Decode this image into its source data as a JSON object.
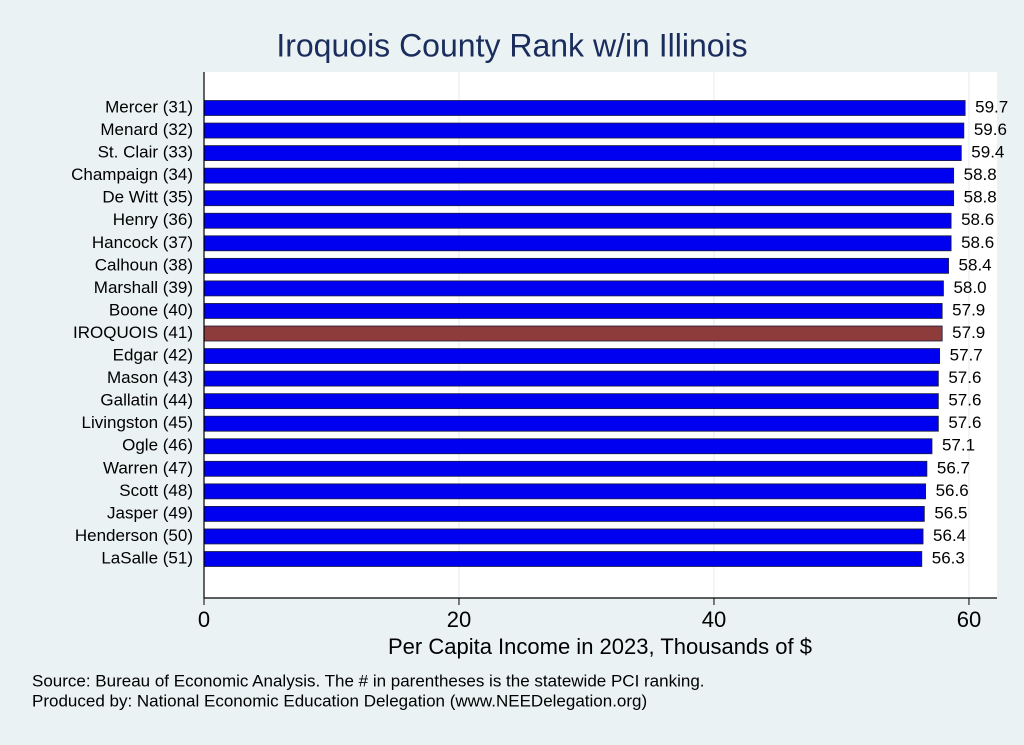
{
  "chart_data": {
    "type": "bar",
    "orientation": "horizontal",
    "title": "Iroquois County Rank w/in Illinois",
    "xlabel": "Per Capita Income in 2023, Thousands of $",
    "notes": [
      "Source: Bureau of Economic Analysis. The # in parentheses is the statewide PCI ranking.",
      "Produced by: National Economic Education Delegation (www.NEEDelegation.org)"
    ],
    "categories": [
      "Mercer (31)",
      "Menard (32)",
      "St. Clair (33)",
      "Champaign (34)",
      "De Witt (35)",
      "Henry (36)",
      "Hancock (37)",
      "Calhoun (38)",
      "Marshall (39)",
      "Boone (40)",
      "IROQUOIS (41)",
      "Edgar (42)",
      "Mason (43)",
      "Gallatin (44)",
      "Livingston (45)",
      "Ogle (46)",
      "Warren (47)",
      "Scott (48)",
      "Jasper (49)",
      "Henderson (50)",
      "LaSalle (51)"
    ],
    "values": [
      59.7,
      59.6,
      59.4,
      58.8,
      58.8,
      58.6,
      58.6,
      58.4,
      58.0,
      57.9,
      57.9,
      57.7,
      57.6,
      57.6,
      57.6,
      57.1,
      56.7,
      56.6,
      56.5,
      56.4,
      56.3
    ],
    "value_labels": [
      "59.7",
      "59.6",
      "59.4",
      "58.8",
      "58.8",
      "58.6",
      "58.6",
      "58.4",
      "58.0",
      "57.9",
      "57.9",
      "57.7",
      "57.6",
      "57.6",
      "57.6",
      "57.1",
      "56.7",
      "56.6",
      "56.5",
      "56.4",
      "56.3"
    ],
    "colors": [
      "#0000f0",
      "#0000f0",
      "#0000f0",
      "#0000f0",
      "#0000f0",
      "#0000f0",
      "#0000f0",
      "#0000f0",
      "#0000f0",
      "#0000f0",
      "#8e3b3b",
      "#0000f0",
      "#0000f0",
      "#0000f0",
      "#0000f0",
      "#0000f0",
      "#0000f0",
      "#0000f0",
      "#0000f0",
      "#0000f0",
      "#0000f0"
    ],
    "xlim": [
      0,
      62.2
    ],
    "xticks": [
      0,
      20,
      40,
      60
    ],
    "grid": true
  }
}
